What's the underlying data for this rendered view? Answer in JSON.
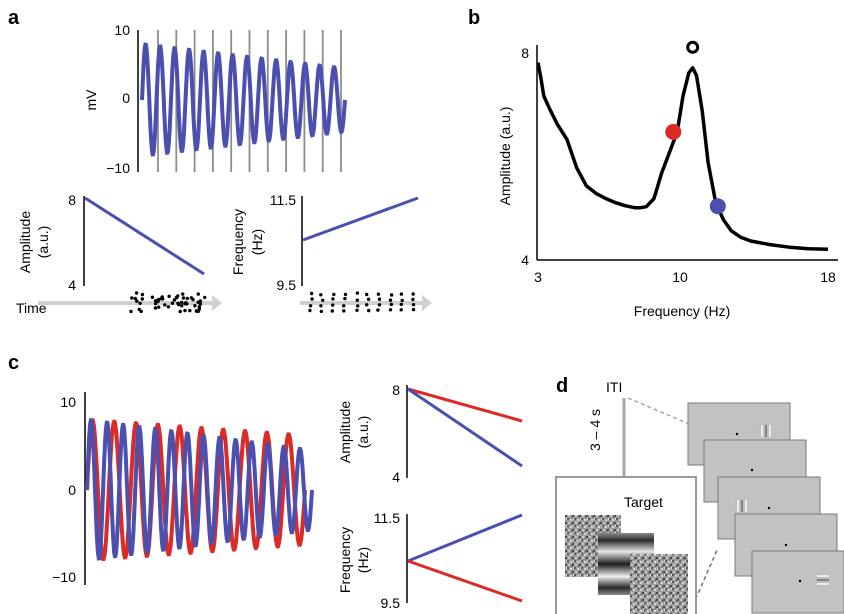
{
  "panels": {
    "a": {
      "label": "a",
      "signal": {
        "ylabel": "mV",
        "ticks": [
          "10",
          "0",
          "−10"
        ]
      },
      "amplitude": {
        "ylabel_line1": "Amplitude",
        "ylabel_line2": "(a.u.)",
        "ticks": [
          "8",
          "4"
        ]
      },
      "frequency": {
        "ylabel_line1": "Frequency",
        "ylabel_line2": "(Hz)",
        "ticks": [
          "11.5",
          "9.5"
        ]
      },
      "time_label": "Time"
    },
    "b": {
      "label": "b",
      "xlabel": "Frequency (Hz)",
      "ylabel": "Amplitude (a.u.)",
      "xticks": [
        "3",
        "10",
        "18"
      ],
      "yticks": [
        "8",
        "4"
      ]
    },
    "c": {
      "label": "c",
      "signal_ticks": [
        "10",
        "0",
        "−10"
      ],
      "amplitude": {
        "ylabel_line1": "Amplitude",
        "ylabel_line2": "(a.u.)",
        "ticks": [
          "8",
          "4"
        ]
      },
      "frequency": {
        "ylabel_line1": "Frequency",
        "ylabel_line2": "(Hz)",
        "ticks": [
          "11.5",
          "9.5"
        ]
      }
    },
    "d": {
      "label": "d",
      "iti_label": "ITI",
      "duration_label": "3 – 4 s",
      "target_label": "Target"
    }
  },
  "colors": {
    "blue": "#4a4fb0",
    "red": "#dd2a24",
    "black": "#000000",
    "gray": "#8c8c8c",
    "arrow": "#d0d0d0"
  },
  "chart_data": [
    {
      "panel": "a",
      "type": "line",
      "ylim": [
        -10,
        10
      ],
      "series": [
        {
          "color": "#4a4fb0",
          "amplitude_start": 8,
          "amplitude_end": 4.5,
          "cycles": 14
        }
      ]
    },
    {
      "panel": "a-amplitude",
      "type": "line",
      "ylim": [
        4,
        8
      ],
      "series": [
        {
          "color": "#4a4fb0",
          "y": [
            8,
            4.4
          ]
        }
      ]
    },
    {
      "panel": "a-frequency",
      "type": "line",
      "ylim": [
        9.5,
        11.5
      ],
      "series": [
        {
          "color": "#4a4fb0",
          "y": [
            10.5,
            11.5
          ]
        }
      ]
    },
    {
      "panel": "b",
      "type": "line",
      "xlim": [
        3,
        18
      ],
      "ylim": [
        4,
        8
      ],
      "x": [
        3,
        3.15,
        3.3,
        3.6,
        4,
        4.5,
        5,
        5.5,
        6,
        6.5,
        7,
        7.5,
        8,
        8.3,
        8.6,
        9,
        9.4,
        9.8,
        10.2,
        10.5,
        10.8,
        11.0,
        11.2,
        11.5,
        11.8,
        12.2,
        12.6,
        13,
        13.5,
        14,
        15,
        16,
        17,
        18
      ],
      "y": [
        7.85,
        7.55,
        7.2,
        6.95,
        6.65,
        6.35,
        5.8,
        5.45,
        5.3,
        5.2,
        5.12,
        5.06,
        5.02,
        5.02,
        5.04,
        5.2,
        5.7,
        6.1,
        6.5,
        7.2,
        7.65,
        7.75,
        7.6,
        6.9,
        5.9,
        5.1,
        4.78,
        4.57,
        4.44,
        4.37,
        4.3,
        4.25,
        4.22,
        4.21
      ],
      "markers": [
        {
          "x": 10.0,
          "y": 6.5,
          "color": "#dd2a24",
          "style": "filled"
        },
        {
          "x": 12.3,
          "y": 5.05,
          "color": "#4a4fb0",
          "style": "filled"
        },
        {
          "x": 11.0,
          "y": 8.15,
          "color": "#000000",
          "style": "open"
        }
      ]
    },
    {
      "panel": "c",
      "type": "line",
      "ylim": [
        -10,
        10
      ],
      "series": [
        {
          "color": "#dd2a24",
          "amplitude_start": 8,
          "amplitude_end": 6.2,
          "cycles": 10
        },
        {
          "color": "#4a4fb0",
          "amplitude_start": 8,
          "amplitude_end": 4.5,
          "cycles": 14
        }
      ]
    },
    {
      "panel": "c-amplitude",
      "type": "line",
      "ylim": [
        4,
        8
      ],
      "series": [
        {
          "color": "#dd2a24",
          "y": [
            8,
            6.5
          ]
        },
        {
          "color": "#4a4fb0",
          "y": [
            8,
            4.4
          ]
        }
      ]
    },
    {
      "panel": "c-frequency",
      "type": "line",
      "ylim": [
        9.5,
        11.5
      ],
      "series": [
        {
          "color": "#4a4fb0",
          "y": [
            10.5,
            11.5
          ]
        },
        {
          "color": "#dd2a24",
          "y": [
            10.5,
            9.5
          ]
        }
      ]
    }
  ]
}
